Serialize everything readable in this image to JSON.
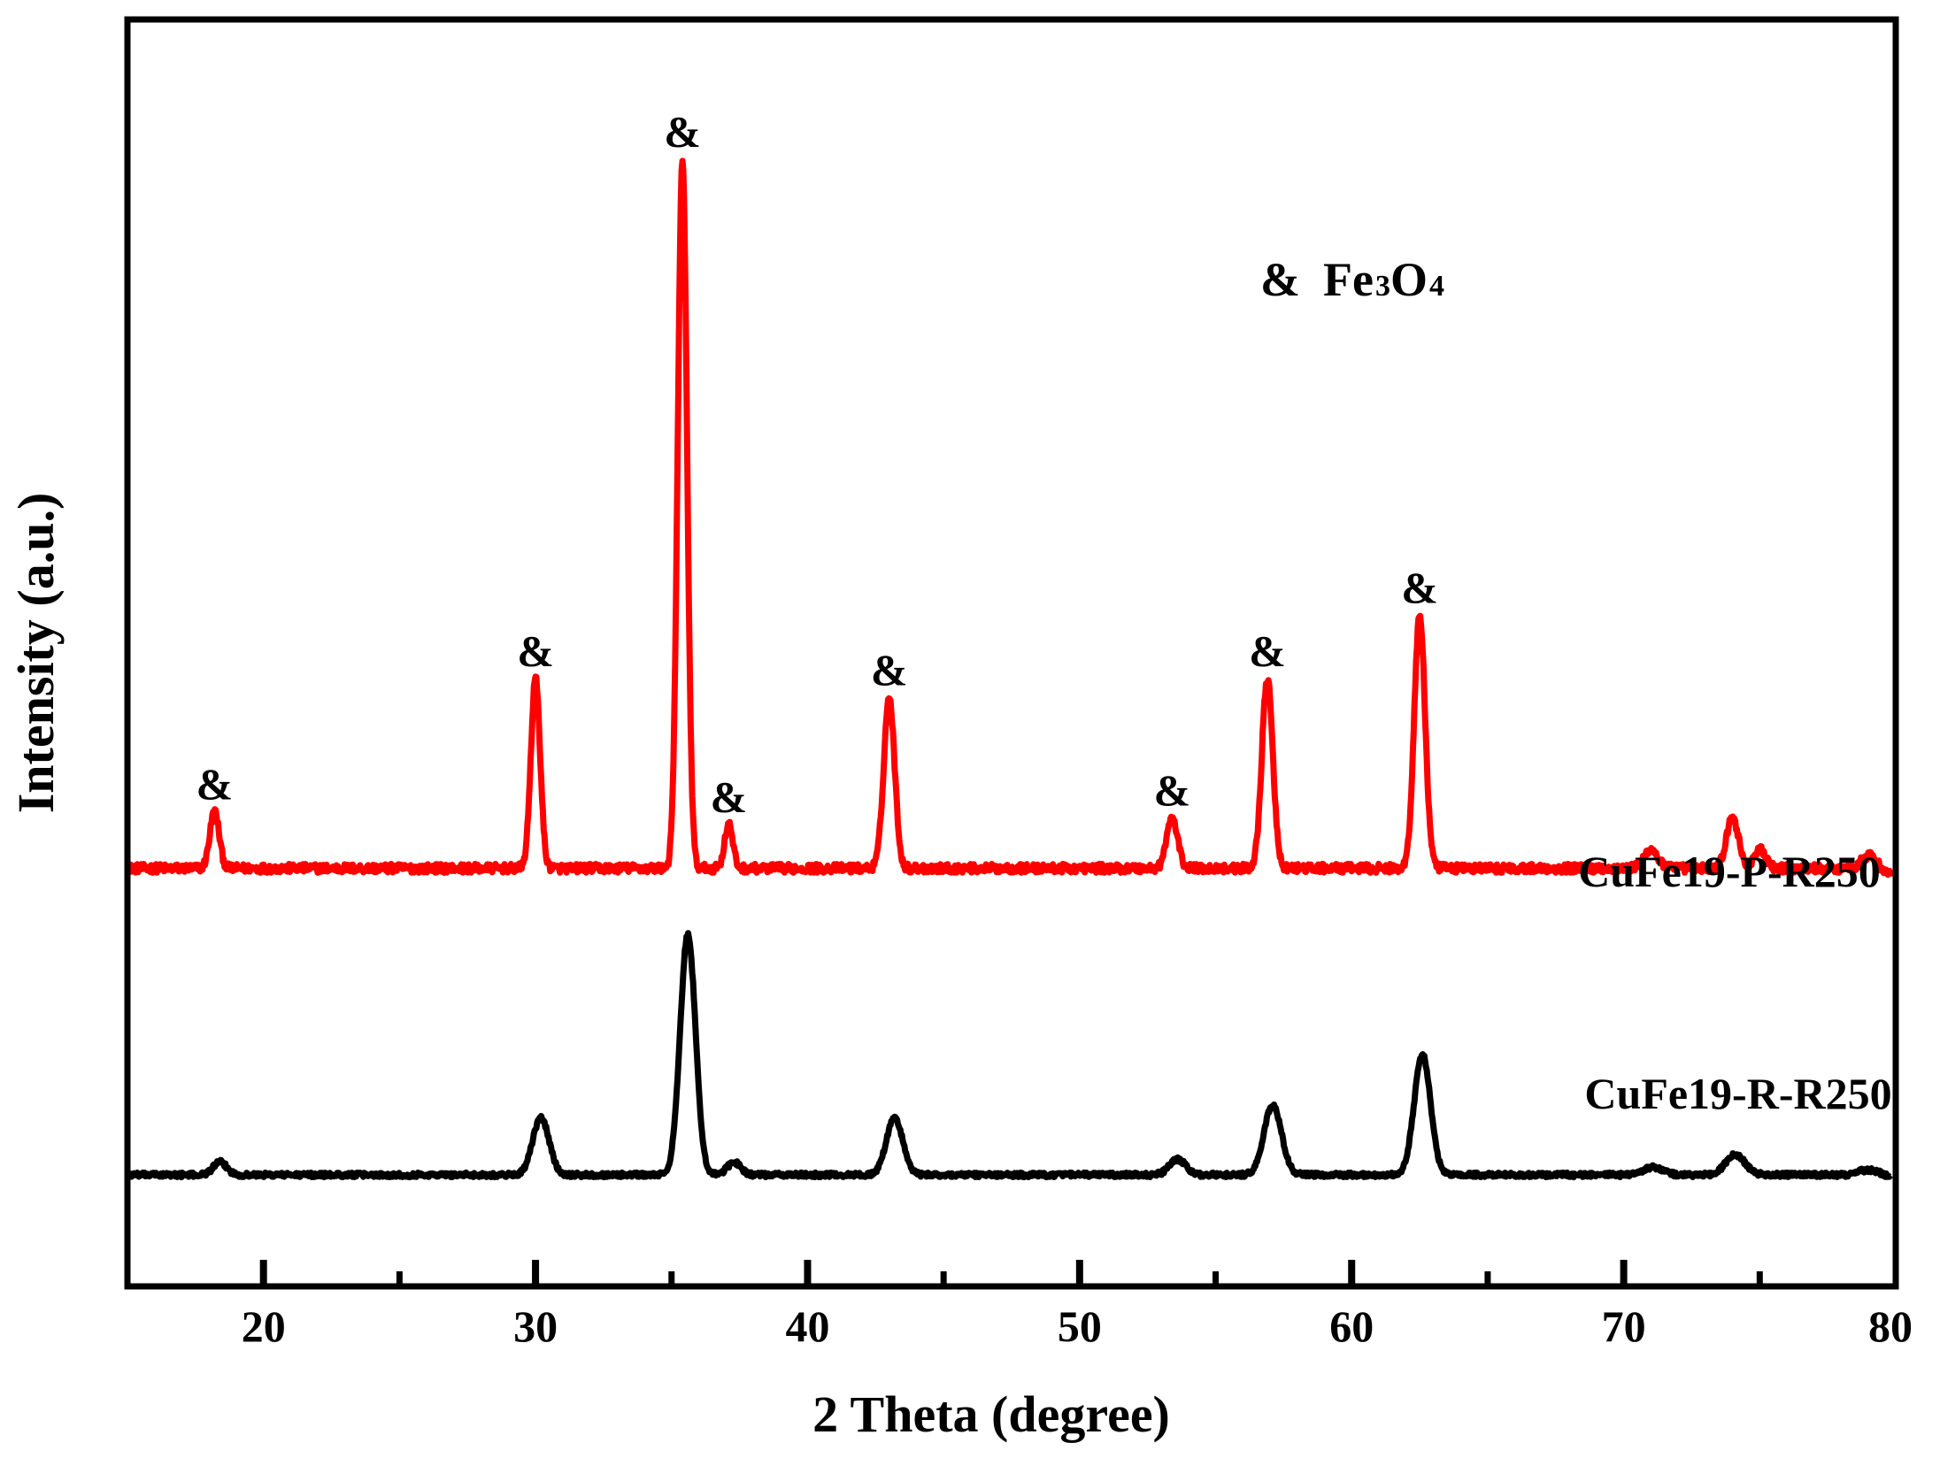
{
  "chart_data": {
    "type": "line",
    "xlabel": "2 Theta (degree)",
    "ylabel": "Intensity (a.u.)",
    "xlim": [
      15,
      80
    ],
    "ylim": [
      0,
      100
    ],
    "x_major_ticks": [
      20,
      30,
      40,
      50,
      60,
      70,
      80
    ],
    "x_tick_labels": [
      "20",
      "30",
      "40",
      "50",
      "60",
      "70",
      "80"
    ],
    "x_minor_ticks": [
      25,
      35,
      45,
      55,
      65,
      75
    ],
    "grid": false,
    "legend": {
      "marker": "&",
      "phase": "Fe",
      "sub1": "3",
      "mid": "O",
      "sub2": "4"
    },
    "peak_marker_symbol": "&",
    "series": [
      {
        "name": "CuFe19-P-R250",
        "color": "#ff0000",
        "baseline": 33,
        "noise": 0.35,
        "end_x": 79.8,
        "end_drop": 0.5,
        "peaks": [
          {
            "x": 18.2,
            "h": 4.5,
            "w": 0.17
          },
          {
            "x": 30.0,
            "h": 15.0,
            "w": 0.17
          },
          {
            "x": 35.4,
            "h": 56.0,
            "w": 0.17
          },
          {
            "x": 37.1,
            "h": 3.5,
            "w": 0.15
          },
          {
            "x": 43.0,
            "h": 13.5,
            "w": 0.2
          },
          {
            "x": 53.4,
            "h": 4.0,
            "w": 0.2
          },
          {
            "x": 56.9,
            "h": 15.0,
            "w": 0.2
          },
          {
            "x": 62.5,
            "h": 20.0,
            "w": 0.2
          },
          {
            "x": 71.0,
            "h": 1.5,
            "w": 0.25
          },
          {
            "x": 74.0,
            "h": 4.0,
            "w": 0.22
          },
          {
            "x": 75.0,
            "h": 1.5,
            "w": 0.2
          },
          {
            "x": 79.0,
            "h": 1.0,
            "w": 0.25
          }
        ],
        "marked_peaks": [
          18.2,
          30.0,
          35.4,
          37.1,
          43.0,
          53.4,
          56.9,
          62.5
        ]
      },
      {
        "name": "CuFe19-R-R250",
        "color": "#000000",
        "baseline": 8.8,
        "noise": 0.18,
        "end_x": 79.8,
        "end_drop": 0.2,
        "peaks": [
          {
            "x": 18.4,
            "h": 1.0,
            "w": 0.25
          },
          {
            "x": 30.2,
            "h": 4.5,
            "w": 0.3
          },
          {
            "x": 35.6,
            "h": 19.0,
            "w": 0.28
          },
          {
            "x": 37.3,
            "h": 1.0,
            "w": 0.25
          },
          {
            "x": 43.2,
            "h": 4.5,
            "w": 0.3
          },
          {
            "x": 53.6,
            "h": 1.2,
            "w": 0.3
          },
          {
            "x": 57.1,
            "h": 5.5,
            "w": 0.32
          },
          {
            "x": 62.6,
            "h": 9.5,
            "w": 0.3
          },
          {
            "x": 71.1,
            "h": 0.6,
            "w": 0.35
          },
          {
            "x": 74.1,
            "h": 1.6,
            "w": 0.35
          },
          {
            "x": 79.0,
            "h": 0.4,
            "w": 0.35
          }
        ],
        "marked_peaks": []
      }
    ]
  }
}
